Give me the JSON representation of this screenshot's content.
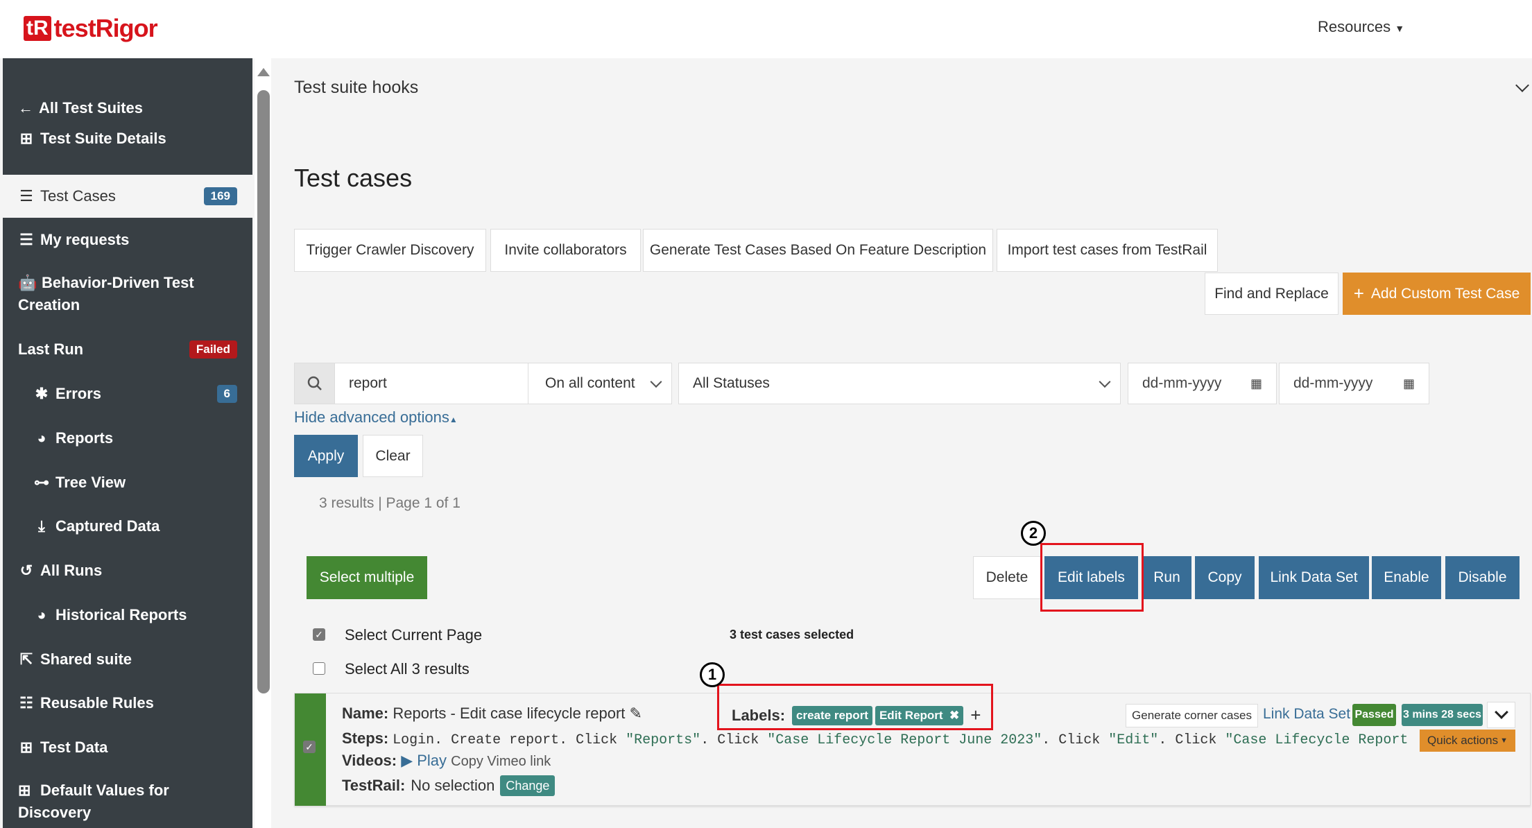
{
  "header": {
    "logo_mark": "tR",
    "logo_text": "testRigor",
    "resources": "Resources"
  },
  "sidebar": {
    "items": [
      {
        "label": "All Test Suites",
        "icon": "arrow-left-icon"
      },
      {
        "label": "Test Suite Details",
        "icon": "table-icon"
      },
      {
        "label": "Test Cases",
        "icon": "list-icon",
        "badge": "169",
        "active": true
      },
      {
        "label": "My requests",
        "icon": "list-icon"
      },
      {
        "label": "Behavior-Driven Test Creation",
        "icon": "robot-icon"
      },
      {
        "label": "Last Run",
        "badge": "Failed"
      },
      {
        "label": "Errors",
        "icon": "bug-icon",
        "badge": "6"
      },
      {
        "label": "Reports",
        "icon": "pie-chart-icon"
      },
      {
        "label": "Tree View",
        "icon": "tree-icon"
      },
      {
        "label": "Captured Data",
        "icon": "download-icon"
      },
      {
        "label": "All Runs",
        "icon": "history-icon"
      },
      {
        "label": "Historical Reports",
        "icon": "pie-chart-icon"
      },
      {
        "label": "Shared suite",
        "icon": "share-icon"
      },
      {
        "label": "Reusable Rules",
        "icon": "list-ul-icon"
      },
      {
        "label": "Test Data",
        "icon": "table-icon"
      },
      {
        "label": "Default Values for Discovery",
        "icon": "table-icon"
      }
    ]
  },
  "main": {
    "hooks_title": "Test suite hooks",
    "title": "Test cases",
    "actions": [
      "Trigger Crawler Discovery",
      "Invite collaborators",
      "Generate Test Cases Based On Feature Description",
      "Import test cases from TestRail"
    ],
    "find_replace": "Find and Replace",
    "add_custom": "Add Custom Test Case",
    "search": {
      "value": "report",
      "scope": "On all content",
      "status": "All Statuses",
      "date_from_placeholder": "dd-mm-yyyy",
      "date_to_placeholder": "dd-mm-yyyy"
    },
    "hide_advanced": "Hide advanced options",
    "apply": "Apply",
    "clear": "Clear",
    "results": "3 results | Page 1 of 1",
    "select_multiple": "Select multiple",
    "bulk": [
      "Delete",
      "Edit labels",
      "Run",
      "Copy",
      "Link Data Set",
      "Enable",
      "Disable"
    ],
    "select_current_page": "Select Current Page",
    "selected_count": "3 test cases selected",
    "select_all": "Select All 3 results",
    "annotations": [
      "1",
      "2"
    ],
    "card": {
      "name_label": "Name:",
      "name": "Reports - Edit case lifecycle report",
      "labels_label": "Labels:",
      "labels": [
        "create report",
        "Edit Report"
      ],
      "steps_label": "Steps:",
      "steps_plain1": "Login. Create report. Click ",
      "steps_q1": "\"Reports\"",
      "steps_plain2": ". Click ",
      "steps_q2": "\"Case Lifecycle Report June 2023\"",
      "steps_plain3": ". Click ",
      "steps_q3": "\"Edit\"",
      "steps_plain4": ". Click ",
      "steps_q4": "\"Case Lifecycle Report J…",
      "videos_label": "Videos:",
      "play": "Play",
      "copy_vimeo": "Copy Vimeo link",
      "testrail_label": "TestRail:",
      "testrail_value": "No selection",
      "change": "Change",
      "generate_corner": "Generate corner cases",
      "link_data_set": "Link Data Set",
      "status": "Passed",
      "duration": "3 mins 28 secs",
      "quick_actions": "Quick actions"
    }
  },
  "colors": {
    "brand": "#d7141c",
    "sidebar": "#383f44",
    "primary": "#386d96",
    "success": "#448833",
    "teal": "#3f8a82",
    "orange": "#e08e2b",
    "danger": "#b3191c"
  }
}
